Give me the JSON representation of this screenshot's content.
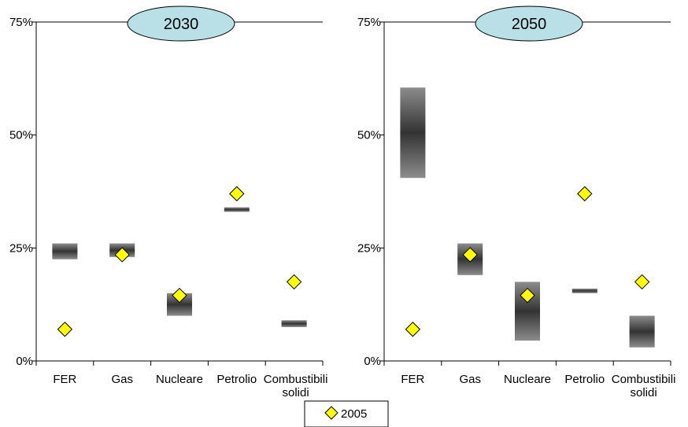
{
  "colors": {
    "title_ellipse_fill": "#b8e0e6",
    "marker_fill": "#ffff00",
    "range_dark": "#333333",
    "range_light": "#8c8c8c"
  },
  "chart_data": [
    {
      "type": "range",
      "title": "2030",
      "categories": [
        "FER",
        "Gas",
        "Nucleare",
        "Petrolio",
        "Combustibili solidi"
      ],
      "y_ticks": [
        "0%",
        "25%",
        "50%",
        "75%"
      ],
      "ylim": [
        0,
        75
      ],
      "grid": false,
      "series": [
        {
          "name": "",
          "kind": "range",
          "low": [
            22.5,
            23.0,
            10.0,
            33.0,
            7.5
          ],
          "high": [
            26.0,
            26.0,
            15.0,
            34.0,
            9.0
          ]
        },
        {
          "name": "2005",
          "kind": "marker",
          "values": [
            7.0,
            23.5,
            14.5,
            37.0,
            17.5
          ]
        }
      ]
    },
    {
      "type": "range",
      "title": "2050",
      "categories": [
        "FER",
        "Gas",
        "Nucleare",
        "Petrolio",
        "Combustibili solidi"
      ],
      "y_ticks": [
        "0%",
        "25%",
        "50%",
        "75%"
      ],
      "ylim": [
        0,
        75
      ],
      "grid": false,
      "series": [
        {
          "name": "",
          "kind": "range",
          "low": [
            40.5,
            19.0,
            4.5,
            15.0,
            3.0
          ],
          "high": [
            60.5,
            26.0,
            17.5,
            16.0,
            10.0
          ]
        },
        {
          "name": "2005",
          "kind": "marker",
          "values": [
            7.0,
            23.5,
            14.5,
            37.0,
            17.5
          ]
        }
      ]
    }
  ],
  "legend": {
    "label": "2005",
    "position": "bottom-center"
  }
}
